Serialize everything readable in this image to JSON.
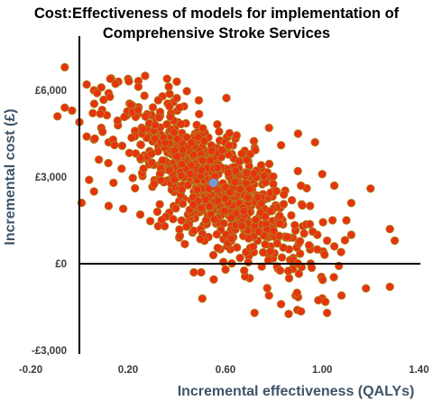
{
  "chart_data": {
    "type": "scatter",
    "title_lines": [
      "Cost:Effectiveness of models for implementation of",
      "Comprehensive Stroke Services"
    ],
    "xlabel": "Incremental effectiveness (QALYs)",
    "ylabel": "Incremental cost (£)",
    "xlim": [
      -0.2,
      1.4
    ],
    "ylim": [
      -3000,
      8000
    ],
    "x_ticks": [
      -0.2,
      0.2,
      0.6,
      1.0,
      1.4
    ],
    "x_tick_labels": [
      "-0.20",
      "0.20",
      "0.60",
      "1.00",
      "1.40"
    ],
    "y_ticks": [
      -3000,
      0,
      3000,
      6000
    ],
    "y_tick_labels": [
      "-£3,000",
      "£0",
      "£3,000",
      "£6,000"
    ],
    "grid": false,
    "point_color": "#e83212",
    "point_edge_color": "#a88a1a",
    "mean_point": {
      "x": 0.55,
      "y": 2800,
      "color": "#6f9bd8"
    },
    "series": [
      {
        "points": [
          [
            -0.06,
            6800
          ],
          [
            -0.09,
            5100
          ],
          [
            -0.06,
            5400
          ],
          [
            0.03,
            6200
          ],
          [
            0.06,
            6000
          ],
          [
            0.09,
            6100
          ],
          [
            0.12,
            5900
          ],
          [
            0.16,
            6300
          ],
          [
            0.27,
            6500
          ],
          [
            0.36,
            6400
          ],
          [
            0.4,
            6300
          ],
          [
            -0.03,
            5300
          ],
          [
            0.0,
            4900
          ],
          [
            0.03,
            4400
          ],
          [
            0.06,
            4300
          ],
          [
            0.09,
            4700
          ],
          [
            0.12,
            4200
          ],
          [
            0.08,
            3600
          ],
          [
            0.04,
            2900
          ],
          [
            0.06,
            2500
          ],
          [
            0.14,
            2800
          ],
          [
            0.12,
            2000
          ],
          [
            0.18,
            1900
          ],
          [
            0.25,
            1700
          ],
          [
            0.32,
            1800
          ],
          [
            0.35,
            1300
          ],
          [
            0.41,
            900
          ],
          [
            0.47,
            -300
          ],
          [
            0.5,
            -300
          ],
          [
            0.55,
            300
          ],
          [
            0.62,
            500
          ],
          [
            0.7,
            -500
          ],
          [
            0.75,
            -100
          ],
          [
            0.79,
            200
          ],
          [
            0.88,
            200
          ],
          [
            0.95,
            600
          ],
          [
            1.02,
            800
          ],
          [
            1.05,
            600
          ],
          [
            1.1,
            1500
          ],
          [
            1.12,
            2100
          ],
          [
            1.2,
            2600
          ],
          [
            1.28,
            1200
          ],
          [
            1.3,
            800
          ],
          [
            1.28,
            -800
          ],
          [
            1.0,
            3100
          ],
          [
            1.05,
            2700
          ],
          [
            0.97,
            4200
          ],
          [
            0.9,
            4500
          ],
          [
            0.83,
            4100
          ],
          [
            0.78,
            4700
          ],
          [
            0.72,
            -1700
          ],
          [
            0.78,
            -1100
          ],
          [
            0.83,
            -1400
          ],
          [
            0.89,
            -1100
          ],
          [
            1.0,
            -1200
          ],
          [
            1.02,
            -1700
          ],
          [
            1.08,
            -1100
          ],
          [
            0.6,
            -200
          ],
          [
            0.66,
            200
          ],
          [
            0.92,
            1300
          ],
          [
            0.95,
            2000
          ],
          [
            0.98,
            1000
          ],
          [
            1.12,
            1000
          ],
          [
            0.85,
            900
          ]
        ]
      }
    ]
  }
}
